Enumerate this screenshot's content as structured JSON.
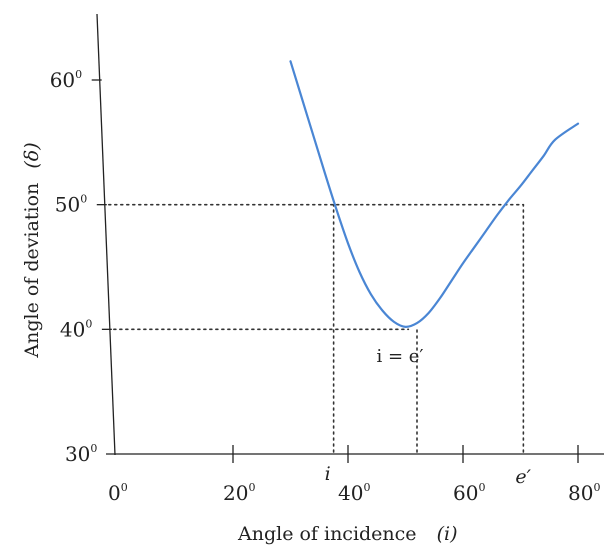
{
  "chart_data": {
    "type": "line",
    "xlabel": "Angle of incidence",
    "xlabel_symbol": "(i)",
    "ylabel": "Angle of deviation",
    "ylabel_symbol": "(δ)",
    "xlim": [
      0,
      80
    ],
    "ylim": [
      30,
      65
    ],
    "x_ticks": [
      {
        "value": 0,
        "label": "0",
        "sup": "0"
      },
      {
        "value": 20,
        "label": "20",
        "sup": "0"
      },
      {
        "value": 40,
        "label": "40",
        "sup": "0"
      },
      {
        "value": 60,
        "label": "60",
        "sup": "0"
      },
      {
        "value": 80,
        "label": "80",
        "sup": "0"
      }
    ],
    "y_ticks": [
      {
        "value": 30,
        "label": "30",
        "sup": "0"
      },
      {
        "value": 40,
        "label": "40",
        "sup": "0"
      },
      {
        "value": 50,
        "label": "50",
        "sup": "0"
      },
      {
        "value": 60,
        "label": "60",
        "sup": "0"
      }
    ],
    "grid": false,
    "series": [
      {
        "color": "#4a86d4",
        "x": [
          30,
          33,
          36,
          38,
          40,
          42,
          44,
          46,
          48,
          50,
          52,
          54,
          56,
          58,
          60,
          62,
          64,
          66,
          68,
          70,
          72,
          74,
          76,
          80
        ],
        "y": [
          61.5,
          57.0,
          52.5,
          49.6,
          46.9,
          44.6,
          42.8,
          41.5,
          40.6,
          40.2,
          40.5,
          41.3,
          42.5,
          43.9,
          45.3,
          46.6,
          47.9,
          49.2,
          50.4,
          51.5,
          52.7,
          53.9,
          55.2,
          56.5
        ]
      }
    ],
    "reference_lines": [
      {
        "type": "horizontal",
        "y": 50,
        "x_from": 0,
        "x_to": 70.5
      },
      {
        "type": "horizontal",
        "y": 40,
        "x_from": 0,
        "x_to": 50.5
      },
      {
        "type": "vertical",
        "x": 37.5,
        "y_from": 30,
        "y_to": 50
      },
      {
        "type": "vertical",
        "x": 52,
        "y_from": 30,
        "y_to": 40
      },
      {
        "type": "vertical",
        "x": 70.5,
        "y_from": 30,
        "y_to": 50
      }
    ],
    "annotations": [
      {
        "text": "i",
        "x": 37.5,
        "y": 30
      },
      {
        "text": "i = e′",
        "x": 46,
        "y": 38
      },
      {
        "text": "e′",
        "x": 70.5,
        "y": 30
      }
    ]
  }
}
